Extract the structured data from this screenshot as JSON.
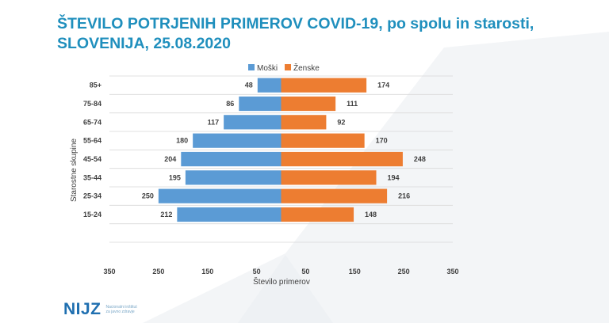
{
  "slide": {
    "title_line1": "ŠTEVILO POTRJENIH PRIMEROV COVID-19, po spolu in starosti,",
    "title_line2": "SLOVENIJA, 25.08.2020"
  },
  "logo": {
    "mark": "NIJZ",
    "sub_line1": "Nacionalni inštitut",
    "sub_line2": "za javno zdravje"
  },
  "colors": {
    "title": "#1f8fbd",
    "male": "#5b9bd5",
    "female": "#ed7d31",
    "grid": "#d9d9d9",
    "text": "#404040"
  },
  "chart_data": {
    "type": "bar",
    "orientation": "horizontal",
    "layout": "population-pyramid",
    "categories": [
      "85+",
      "75-84",
      "65-74",
      "55-64",
      "45-54",
      "35-44",
      "25-34",
      "15-24",
      ""
    ],
    "series": [
      {
        "name": "Moški",
        "values": [
          48,
          86,
          117,
          180,
          204,
          195,
          250,
          212,
          null
        ]
      },
      {
        "name": "Ženske",
        "values": [
          174,
          111,
          92,
          170,
          248,
          194,
          216,
          148,
          null
        ]
      }
    ],
    "xlabel": "Število primerov",
    "ylabel": "Starostne skupine",
    "x_tick_labels": [
      "350",
      "250",
      "150",
      "50",
      "50",
      "150",
      "250",
      "350"
    ],
    "xlim": [
      -350,
      350
    ],
    "legend": "top",
    "grid": true
  }
}
